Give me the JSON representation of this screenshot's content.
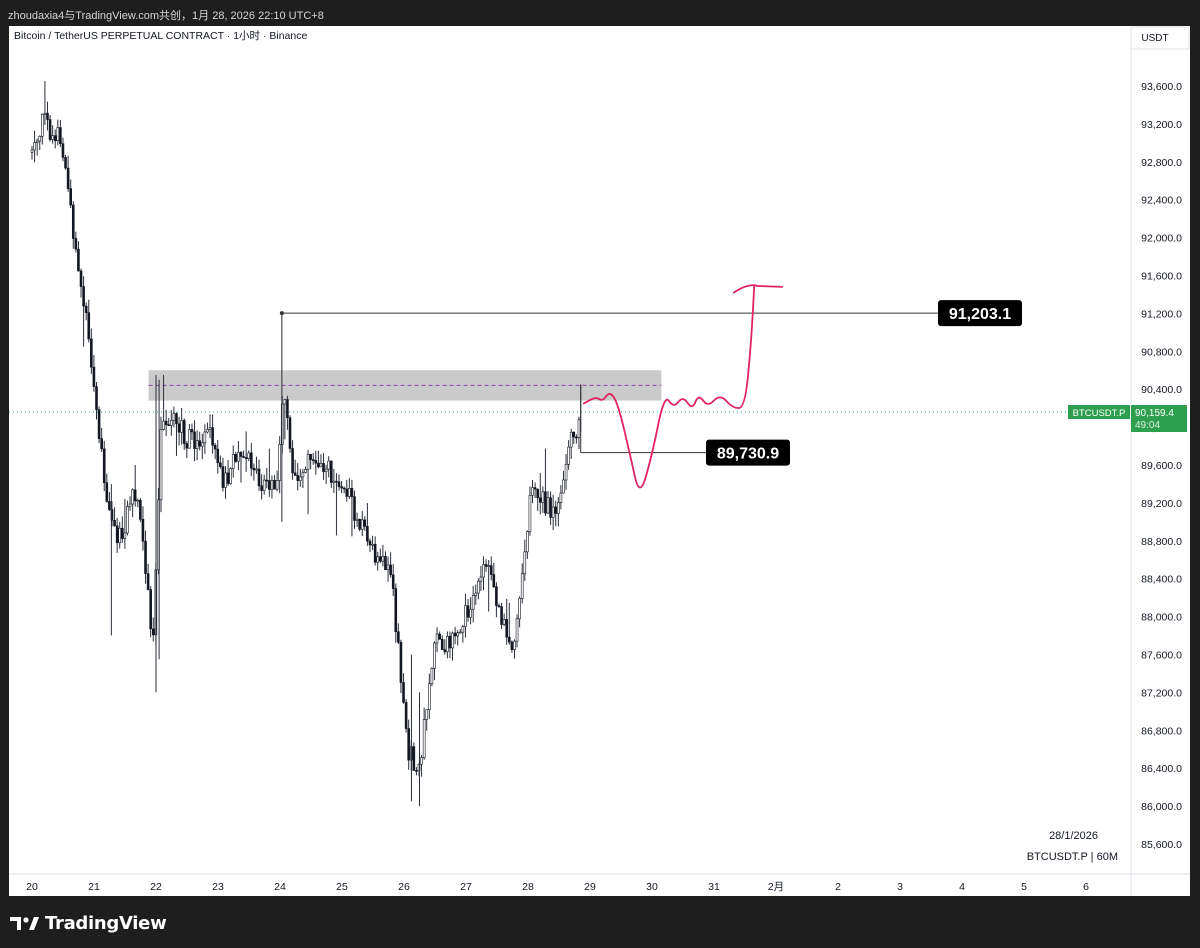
{
  "window": {
    "caption": "zhoudaxia4与TradingView.com共创，1月 28, 2026 22:10 UTC+8"
  },
  "chart_data": {
    "type": "candlestick",
    "title": "Bitcoin / TetherUS PERPETUAL CONTRACT · 1小时 · Binance",
    "currency": "USDT",
    "y_ticks": [
      "93,600.0",
      "93,200.0",
      "92,800.0",
      "92,400.0",
      "92,000.0",
      "91,600.0",
      "91,200.0",
      "90,800.0",
      "90,400.0",
      "90,000.0",
      "89,600.0",
      "89,200.0",
      "88,800.0",
      "88,400.0",
      "88,000.0",
      "87,600.0",
      "87,200.0",
      "86,800.0",
      "86,400.0",
      "86,000.0",
      "85,600.0"
    ],
    "y_tick_values": [
      93600,
      93200,
      92800,
      92400,
      92000,
      91600,
      91200,
      90800,
      90400,
      90000,
      89600,
      89200,
      88800,
      88400,
      88000,
      87600,
      87200,
      86800,
      86400,
      86000,
      85600
    ],
    "ylim": [
      85400,
      94000
    ],
    "x_ticks": [
      "20",
      "21",
      "22",
      "23",
      "24",
      "25",
      "26",
      "27",
      "28",
      "29",
      "30",
      "31",
      "2月",
      "2",
      "3",
      "4",
      "5",
      "6"
    ],
    "x_tick_day_index": [
      0,
      1,
      2,
      3,
      4,
      5,
      6,
      7,
      8,
      9,
      10,
      11,
      12,
      13,
      14,
      15,
      16,
      17
    ],
    "grid": false,
    "annotations": {
      "high_level": {
        "value": 91203.1,
        "label": "91,203.1"
      },
      "low_level": {
        "value": 89730.9,
        "label": "89,730.9"
      },
      "resistance_zone": {
        "low": 90280,
        "high": 90600,
        "mid": 90440
      },
      "current_price": {
        "value": 90159.4,
        "label": "90,159.4",
        "timer": "49:04",
        "symbol": "BTCUSDT.P"
      },
      "watermark": {
        "date": "28/1/2026",
        "symbol_interval": "BTCUSDT.P | 60M"
      }
    },
    "price_path_approx": [
      {
        "day": 0.0,
        "price": 92900
      },
      {
        "day": 0.15,
        "price": 93250
      },
      {
        "day": 0.45,
        "price": 93050
      },
      {
        "day": 0.65,
        "price": 92200
      },
      {
        "day": 0.95,
        "price": 90700
      },
      {
        "day": 1.2,
        "price": 89300
      },
      {
        "day": 1.4,
        "price": 88800
      },
      {
        "day": 1.7,
        "price": 89400
      },
      {
        "day": 1.95,
        "price": 87700
      },
      {
        "day": 2.1,
        "price": 90200
      },
      {
        "day": 2.5,
        "price": 89900
      },
      {
        "day": 2.9,
        "price": 89900
      },
      {
        "day": 3.1,
        "price": 89400
      },
      {
        "day": 3.4,
        "price": 89800
      },
      {
        "day": 3.7,
        "price": 89300
      },
      {
        "day": 3.95,
        "price": 89500
      },
      {
        "day": 4.05,
        "price": 90400
      },
      {
        "day": 4.2,
        "price": 89500
      },
      {
        "day": 4.5,
        "price": 89700
      },
      {
        "day": 5.0,
        "price": 89400
      },
      {
        "day": 5.5,
        "price": 88700
      },
      {
        "day": 5.8,
        "price": 88400
      },
      {
        "day": 6.05,
        "price": 86600
      },
      {
        "day": 6.25,
        "price": 86400
      },
      {
        "day": 6.5,
        "price": 87800
      },
      {
        "day": 6.8,
        "price": 87700
      },
      {
        "day": 7.0,
        "price": 88000
      },
      {
        "day": 7.3,
        "price": 88600
      },
      {
        "day": 7.55,
        "price": 88000
      },
      {
        "day": 7.8,
        "price": 87700
      },
      {
        "day": 8.05,
        "price": 89300
      },
      {
        "day": 8.4,
        "price": 89100
      },
      {
        "day": 8.6,
        "price": 89600
      },
      {
        "day": 8.85,
        "price": 90159
      }
    ]
  }
}
